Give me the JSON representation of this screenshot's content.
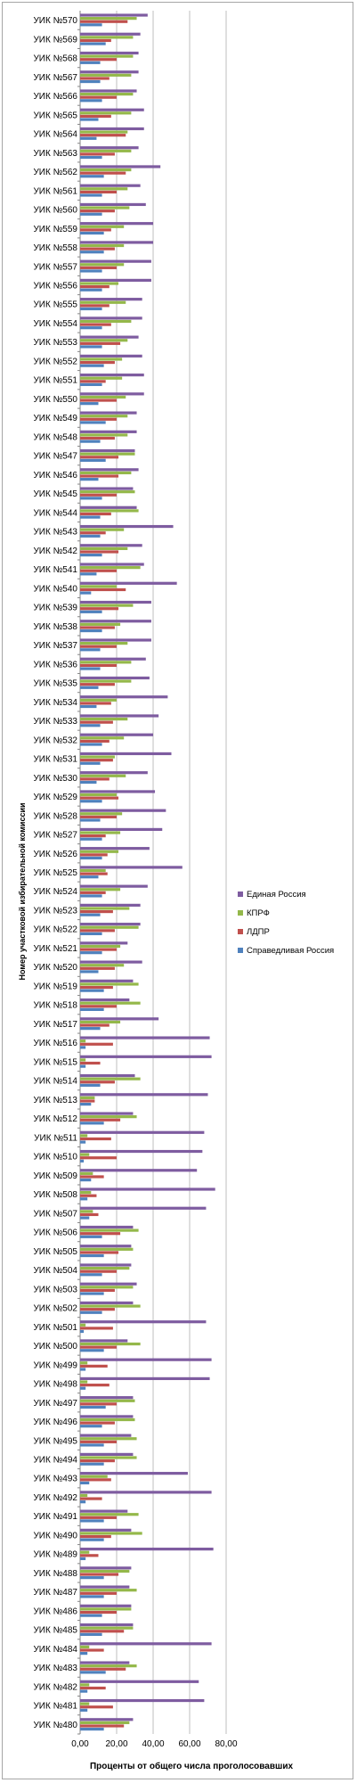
{
  "chart_data": {
    "type": "bar",
    "orientation": "horizontal",
    "xlabel": "Проценты от общего числа проголосовавших",
    "ylabel": "Номер участковой избирательной комиссии",
    "xlim": [
      0,
      80
    ],
    "xticks": [
      "0,00",
      "20,00",
      "40,00",
      "60,00",
      "80,00"
    ],
    "grid": true,
    "legend_position": "right",
    "categories": [
      "УИК №570",
      "УИК №569",
      "УИК №568",
      "УИК №567",
      "УИК №566",
      "УИК №565",
      "УИК №564",
      "УИК №563",
      "УИК №562",
      "УИК №561",
      "УИК №560",
      "УИК №559",
      "УИК №558",
      "УИК №557",
      "УИК №556",
      "УИК №555",
      "УИК №554",
      "УИК №553",
      "УИК №552",
      "УИК №551",
      "УИК №550",
      "УИК №549",
      "УИК №548",
      "УИК №547",
      "УИК №546",
      "УИК №545",
      "УИК №544",
      "УИК №543",
      "УИК №542",
      "УИК №541",
      "УИК №540",
      "УИК №539",
      "УИК №538",
      "УИК №537",
      "УИК №536",
      "УИК №535",
      "УИК №534",
      "УИК №533",
      "УИК №532",
      "УИК №531",
      "УИК №530",
      "УИК №529",
      "УИК №528",
      "УИК №527",
      "УИК №526",
      "УИК №525",
      "УИК №524",
      "УИК №523",
      "УИК №522",
      "УИК №521",
      "УИК №520",
      "УИК №519",
      "УИК №518",
      "УИК №517",
      "УИК №516",
      "УИК №515",
      "УИК №514",
      "УИК №513",
      "УИК №512",
      "УИК №511",
      "УИК №510",
      "УИК №509",
      "УИК №508",
      "УИК №507",
      "УИК №506",
      "УИК №505",
      "УИК №504",
      "УИК №503",
      "УИК №502",
      "УИК №501",
      "УИК №500",
      "УИК №499",
      "УИК №498",
      "УИК №497",
      "УИК №496",
      "УИК №495",
      "УИК №494",
      "УИК №493",
      "УИК №492",
      "УИК №491",
      "УИК №490",
      "УИК №489",
      "УИК №488",
      "УИК №487",
      "УИК №486",
      "УИК №485",
      "УИК №484",
      "УИК №483",
      "УИК №482",
      "УИК №481",
      "УИК №480"
    ],
    "series": [
      {
        "name": "Единая Россия",
        "color": "#7e5ca0",
        "values": [
          37,
          33,
          32,
          32,
          31,
          35,
          35,
          32,
          44,
          33,
          36,
          40,
          40,
          39,
          39,
          34,
          34,
          32,
          34,
          35,
          35,
          31,
          31,
          30,
          32,
          29,
          31,
          51,
          34,
          35,
          53,
          39,
          39,
          39,
          36,
          38,
          48,
          43,
          40,
          50,
          37,
          41,
          47,
          45,
          38,
          56,
          37,
          33,
          33,
          26,
          34,
          29,
          27,
          43,
          71,
          72,
          30,
          70,
          29,
          68,
          67,
          64,
          74,
          69,
          29,
          28,
          28,
          31,
          29,
          69,
          26,
          72,
          71,
          29,
          29,
          28,
          29,
          59,
          72,
          26,
          28,
          73,
          28,
          27,
          28,
          29,
          72,
          27,
          65,
          68,
          29
        ]
      },
      {
        "name": "КПРФ",
        "color": "#94b84a",
        "values": [
          31,
          29,
          29,
          28,
          29,
          28,
          26,
          28,
          28,
          26,
          27,
          24,
          24,
          24,
          21,
          25,
          28,
          26,
          23,
          23,
          25,
          26,
          26,
          30,
          28,
          30,
          32,
          24,
          26,
          33,
          20,
          29,
          22,
          26,
          28,
          28,
          20,
          26,
          24,
          19,
          25,
          20,
          23,
          22,
          21,
          14,
          22,
          27,
          32,
          22,
          24,
          32,
          33,
          22,
          3,
          3,
          33,
          8,
          31,
          4,
          5,
          7,
          6,
          7,
          32,
          29,
          27,
          29,
          33,
          3,
          33,
          4,
          4,
          30,
          30,
          31,
          31,
          15,
          4,
          32,
          34,
          5,
          27,
          31,
          28,
          29,
          5,
          31,
          5,
          5,
          27
        ]
      },
      {
        "name": "ЛДПР",
        "color": "#c0504d",
        "values": [
          26,
          17,
          20,
          16,
          20,
          17,
          25,
          19,
          25,
          20,
          19,
          17,
          19,
          20,
          16,
          16,
          17,
          22,
          19,
          14,
          20,
          20,
          19,
          21,
          21,
          20,
          17,
          14,
          21,
          20,
          25,
          21,
          19,
          20,
          20,
          19,
          17,
          18,
          16,
          18,
          16,
          21,
          20,
          14,
          15,
          15,
          14,
          18,
          19,
          20,
          19,
          18,
          20,
          16,
          18,
          11,
          19,
          8,
          22,
          17,
          20,
          13,
          9,
          10,
          22,
          21,
          20,
          19,
          19,
          18,
          20,
          15,
          16,
          20,
          19,
          20,
          19,
          17,
          12,
          20,
          17,
          10,
          21,
          20,
          20,
          24,
          13,
          25,
          14,
          18,
          24
        ]
      },
      {
        "name": "Справедливая Россия",
        "color": "#4f81bd",
        "values": [
          12,
          14,
          11,
          11,
          12,
          10,
          9,
          12,
          13,
          12,
          12,
          13,
          13,
          12,
          12,
          12,
          12,
          12,
          13,
          12,
          10,
          14,
          11,
          14,
          10,
          12,
          11,
          11,
          12,
          9,
          6,
          12,
          12,
          11,
          11,
          10,
          9,
          11,
          12,
          11,
          9,
          12,
          11,
          12,
          12,
          10,
          12,
          11,
          12,
          12,
          10,
          13,
          13,
          11,
          3,
          3,
          11,
          6,
          13,
          3,
          2,
          6,
          4,
          5,
          12,
          13,
          12,
          13,
          12,
          2,
          13,
          3,
          3,
          14,
          12,
          13,
          13,
          5,
          3,
          13,
          13,
          3,
          13,
          13,
          12,
          12,
          4,
          14,
          4,
          4,
          13
        ]
      }
    ]
  }
}
